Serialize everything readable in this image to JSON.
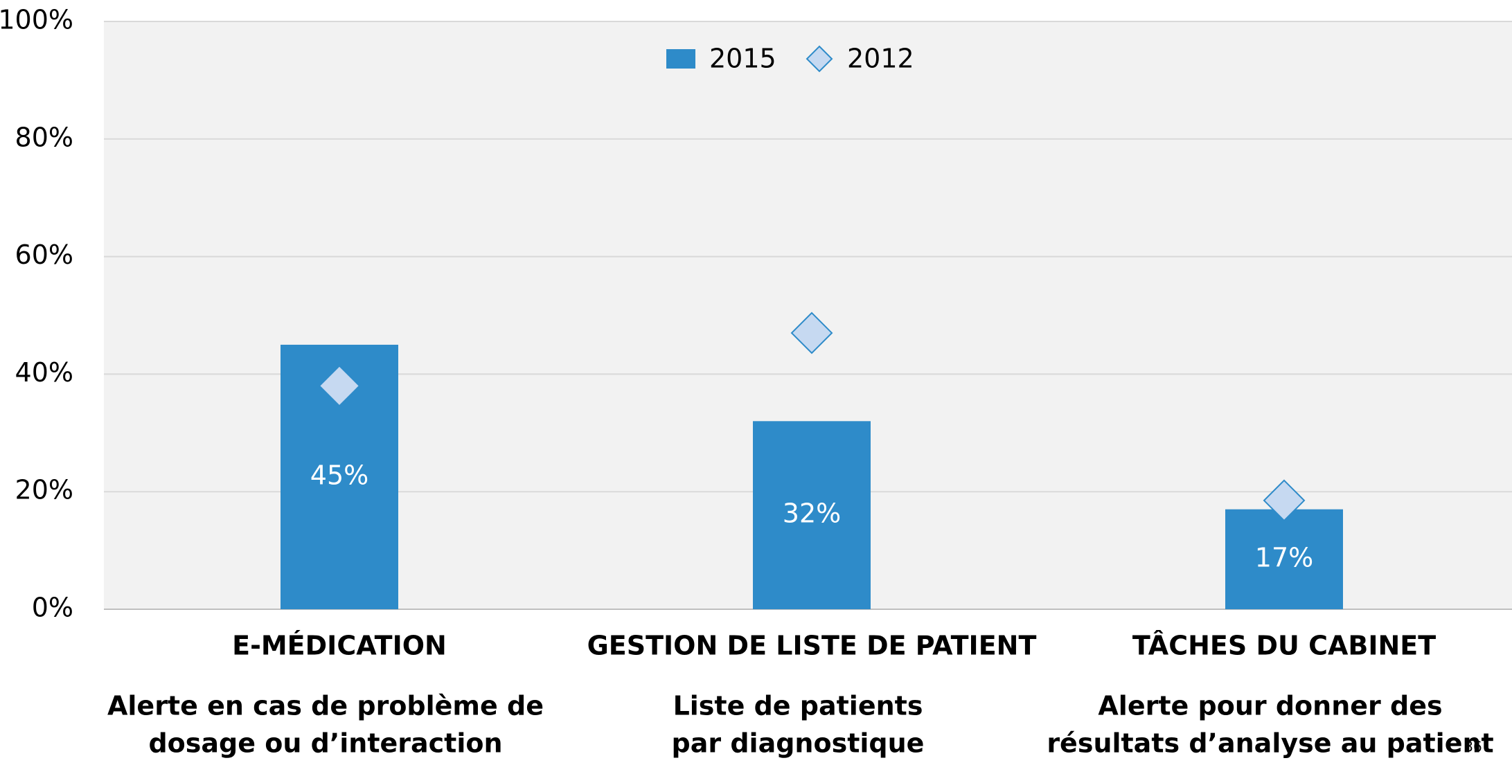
{
  "chart_data": {
    "type": "bar",
    "categories": [
      "E-MÉDICATION",
      "GESTION DE LISTE DE PATIENT",
      "TÂCHES DU CABINET"
    ],
    "subtitles": [
      [
        "Alerte en cas de problème de",
        "dosage ou d’interaction"
      ],
      [
        "Liste de patients",
        "par diagnostique"
      ],
      [
        "Alerte pour donner des",
        "résultats d’analyse au patient"
      ]
    ],
    "series": [
      {
        "name": "2015",
        "color": "#2e8bc9",
        "values": [
          45,
          32,
          17
        ],
        "value_labels": [
          "45%",
          "32%",
          "17%"
        ]
      },
      {
        "name": "2012",
        "color": "#c6d9f1",
        "marker": "diamond",
        "values": [
          38,
          47,
          18.5
        ]
      }
    ],
    "ylim": [
      0,
      100
    ],
    "yticks": [
      {
        "value": 0,
        "label": "0%"
      },
      {
        "value": 20,
        "label": "20%"
      },
      {
        "value": 40,
        "label": "40%"
      },
      {
        "value": 60,
        "label": "60%"
      },
      {
        "value": 80,
        "label": "80%"
      },
      {
        "value": 100,
        "label": "100%"
      }
    ],
    "grid": true,
    "legend": "top"
  },
  "page_number": "36"
}
